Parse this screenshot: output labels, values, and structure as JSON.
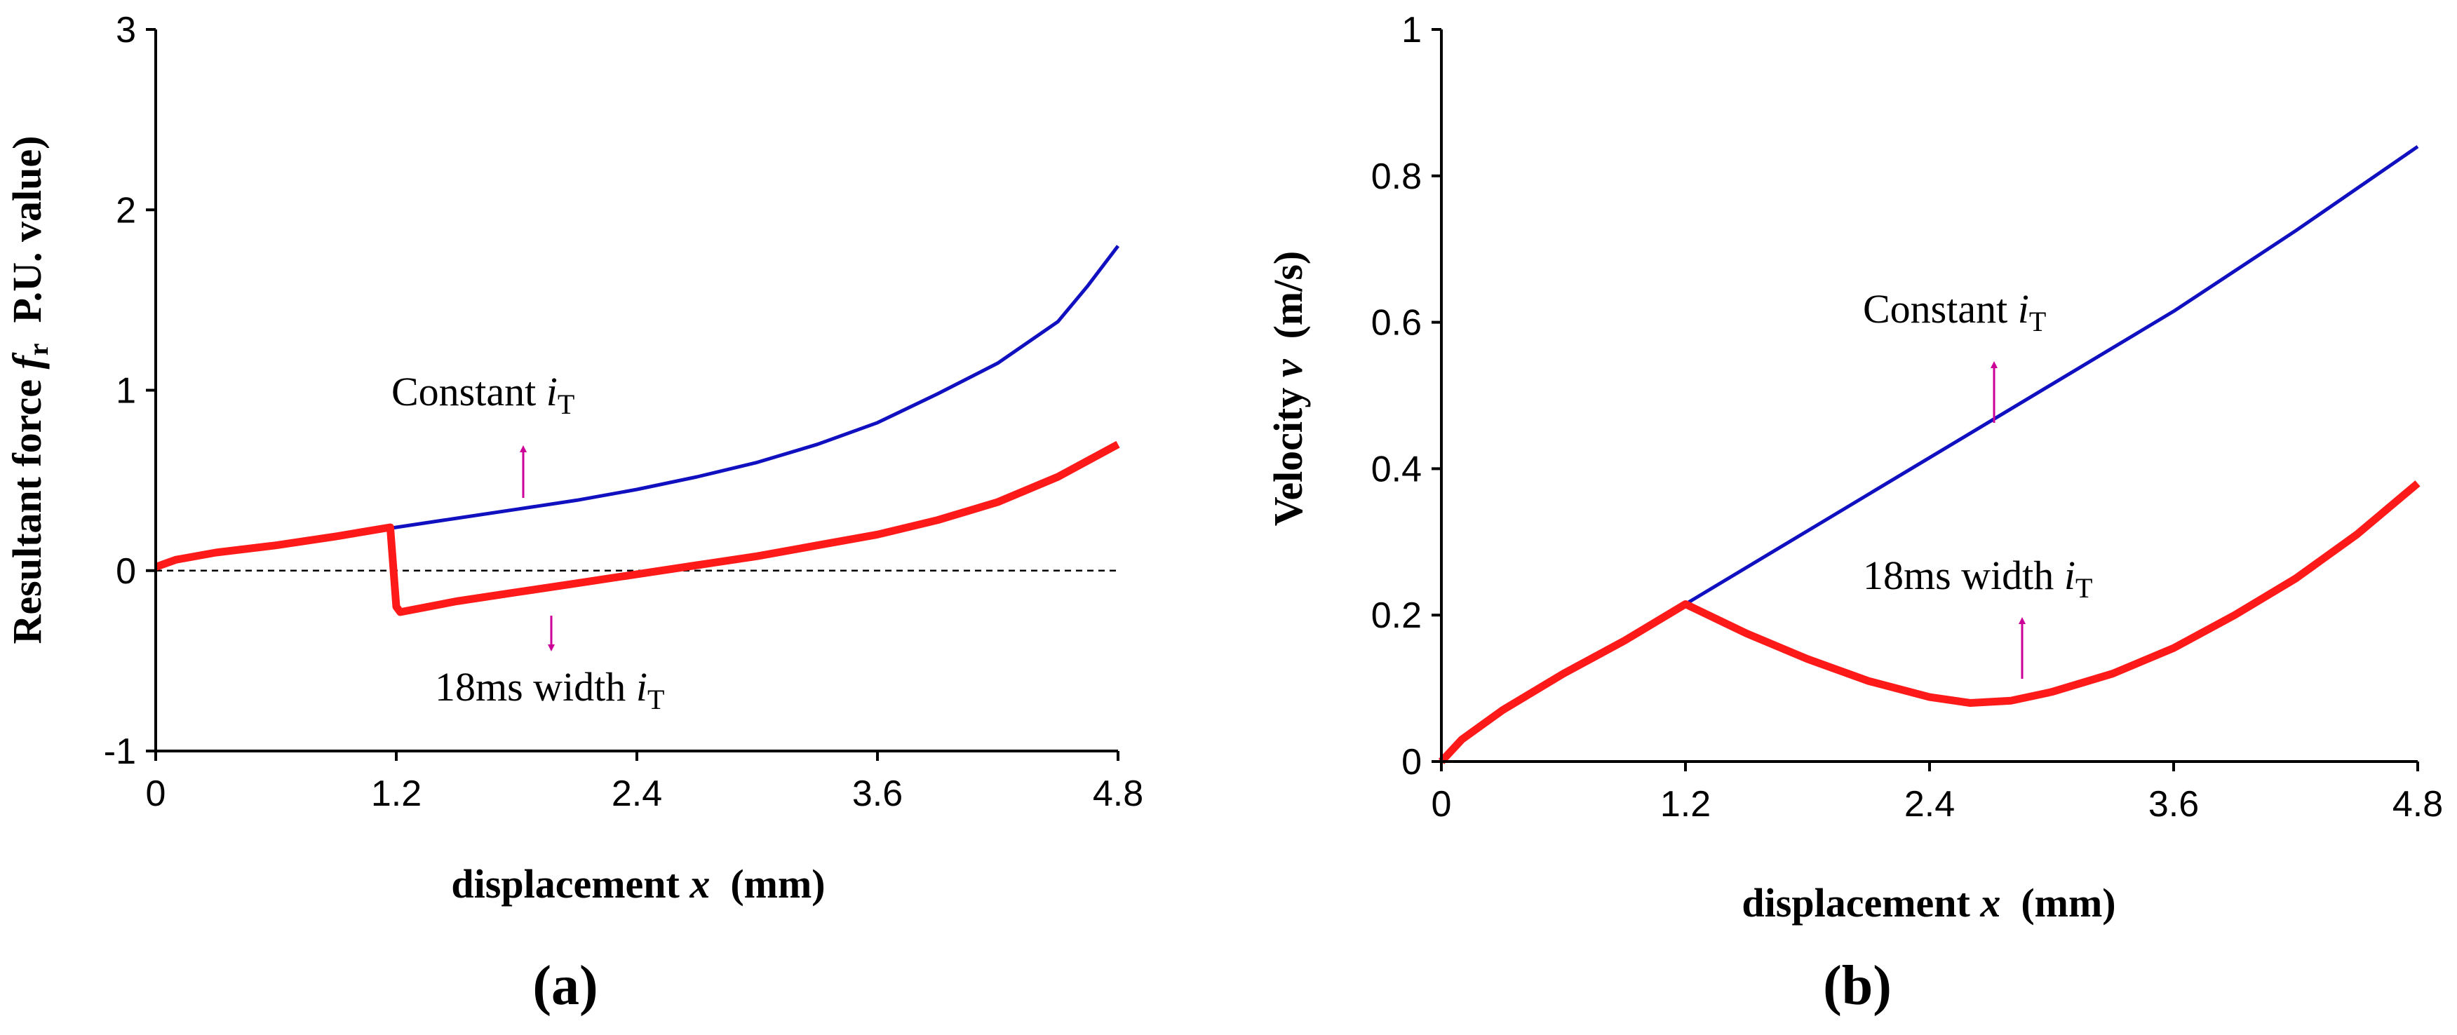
{
  "chart_data": [
    {
      "type": "line",
      "panel_label": "a",
      "xlabel": {
        "prefix": "displacement ",
        "var": "x",
        "unit": "(mm)"
      },
      "ylabel": {
        "prefix": "Resultant force ",
        "var": "f",
        "var_sub": "r",
        "unit": "P.U. value)"
      },
      "xlim": [
        0,
        4.8
      ],
      "ylim": [
        -1,
        3
      ],
      "xticks": [
        "0",
        "1.2",
        "2.4",
        "3.6",
        "4.8"
      ],
      "yticks": [
        "-1",
        "0",
        "1",
        "2",
        "3"
      ],
      "reference_line": {
        "y": 0,
        "style": "dashed"
      },
      "series": [
        {
          "name": "Constant iT",
          "color": "#1010c0",
          "x": [
            0,
            0.1,
            0.3,
            0.6,
            0.9,
            1.2,
            1.5,
            1.8,
            2.1,
            2.4,
            2.7,
            3.0,
            3.3,
            3.6,
            3.9,
            4.2,
            4.5,
            4.65,
            4.8
          ],
          "y": [
            0.02,
            0.06,
            0.1,
            0.14,
            0.19,
            0.24,
            0.29,
            0.34,
            0.39,
            0.45,
            0.52,
            0.6,
            0.7,
            0.82,
            0.98,
            1.15,
            1.38,
            1.58,
            1.8
          ]
        },
        {
          "name": "18ms width iT",
          "color": "#ff1a1a",
          "x": [
            0,
            0.1,
            0.3,
            0.6,
            0.9,
            1.17,
            1.2,
            1.22,
            1.5,
            1.8,
            2.1,
            2.4,
            2.7,
            3.0,
            3.3,
            3.6,
            3.9,
            4.2,
            4.5,
            4.8
          ],
          "y": [
            0.02,
            0.06,
            0.1,
            0.14,
            0.19,
            0.24,
            -0.2,
            -0.23,
            -0.17,
            -0.12,
            -0.07,
            -0.02,
            0.03,
            0.08,
            0.14,
            0.2,
            0.28,
            0.38,
            0.52,
            0.7
          ]
        }
      ],
      "annotations": [
        {
          "text": "Constant ",
          "var": "i",
          "sub": "T",
          "arrow": "up"
        },
        {
          "text": "18ms width ",
          "var": "i",
          "sub": "T",
          "arrow": "down"
        }
      ]
    },
    {
      "type": "line",
      "panel_label": "b",
      "xlabel": {
        "prefix": "displacement ",
        "var": "x",
        "unit": "(mm)"
      },
      "ylabel": {
        "prefix": "Velocity ",
        "var": "v",
        "unit": "(m/s)"
      },
      "xlim": [
        0,
        4.8
      ],
      "ylim": [
        0,
        1
      ],
      "xticks": [
        "0",
        "1.2",
        "2.4",
        "3.6",
        "4.8"
      ],
      "yticks": [
        "0",
        "0.2",
        "0.4",
        "0.6",
        "0.8",
        "1"
      ],
      "series": [
        {
          "name": "Constant iT",
          "color": "#1010c0",
          "x": [
            0,
            0.1,
            0.3,
            0.6,
            0.9,
            1.2,
            1.8,
            2.4,
            3.0,
            3.6,
            4.2,
            4.8
          ],
          "y": [
            0.0,
            0.03,
            0.07,
            0.12,
            0.165,
            0.215,
            0.315,
            0.415,
            0.515,
            0.615,
            0.725,
            0.84
          ]
        },
        {
          "name": "18ms width iT",
          "color": "#ff1a1a",
          "x": [
            0,
            0.1,
            0.3,
            0.6,
            0.9,
            1.2,
            1.5,
            1.8,
            2.1,
            2.4,
            2.6,
            2.8,
            3.0,
            3.3,
            3.6,
            3.9,
            4.2,
            4.5,
            4.8
          ],
          "y": [
            0.0,
            0.03,
            0.07,
            0.12,
            0.165,
            0.215,
            0.175,
            0.14,
            0.11,
            0.088,
            0.08,
            0.083,
            0.095,
            0.12,
            0.155,
            0.2,
            0.25,
            0.31,
            0.38
          ]
        }
      ],
      "annotations": [
        {
          "text": "Constant ",
          "var": "i",
          "sub": "T",
          "arrow": "up"
        },
        {
          "text": "18ms width ",
          "var": "i",
          "sub": "T",
          "arrow": "up"
        }
      ]
    }
  ],
  "colors": {
    "arrow": "#cc0099",
    "axis": "#000000",
    "dashed": "#000000"
  }
}
